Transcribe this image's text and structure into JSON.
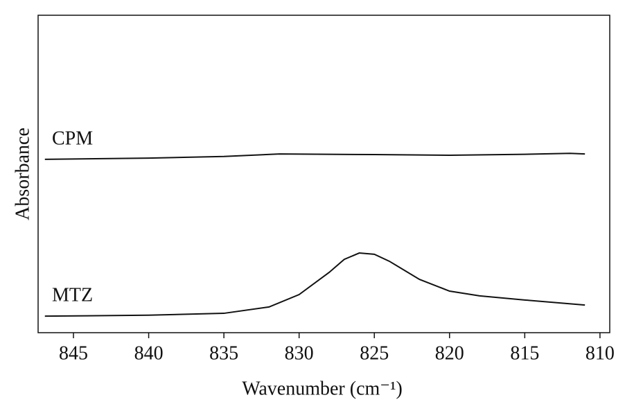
{
  "chart_data": {
    "type": "line",
    "x_label": "Wavenumber (cm⁻¹)",
    "y_label": "Absorbance",
    "xlim": [
      847.35,
      809.35
    ],
    "xticks": [
      845,
      840,
      835,
      830,
      825,
      820,
      815,
      810
    ],
    "ylim": [
      0,
      1
    ],
    "series": [
      {
        "name": "CPM",
        "color": "#111111",
        "x": [
          846.9,
          840,
          835,
          831.3,
          825,
          820,
          815,
          812,
          811
        ],
        "values": [
          0.546,
          0.55,
          0.555,
          0.563,
          0.561,
          0.559,
          0.562,
          0.565,
          0.563
        ]
      },
      {
        "name": "MTZ",
        "color": "#111111",
        "x": [
          846.9,
          840,
          835,
          832,
          830,
          828,
          827,
          826,
          825,
          824,
          822,
          820,
          818,
          815,
          811
        ],
        "values": [
          0.052,
          0.055,
          0.061,
          0.081,
          0.12,
          0.19,
          0.231,
          0.251,
          0.247,
          0.225,
          0.168,
          0.131,
          0.116,
          0.103,
          0.087
        ]
      }
    ]
  }
}
